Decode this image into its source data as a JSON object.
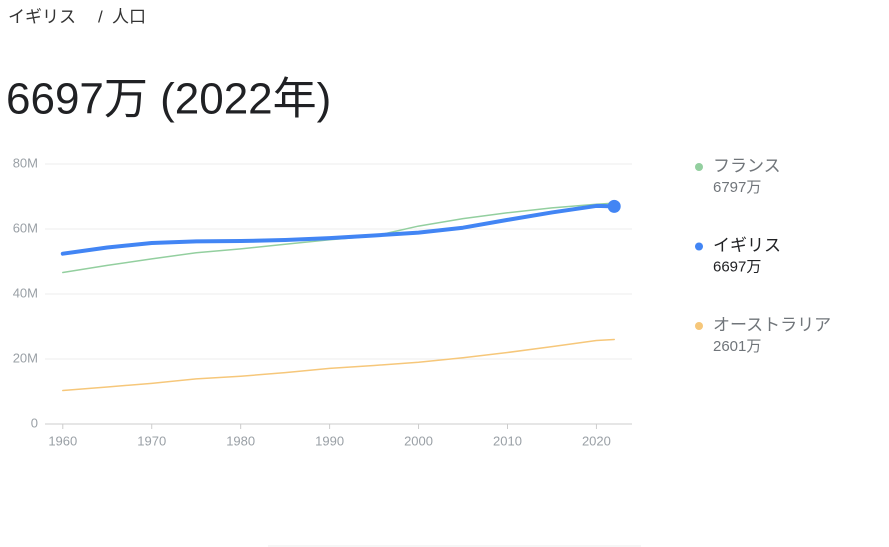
{
  "breadcrumb": [
    "イギリス",
    "/",
    "人口"
  ],
  "headline": "6697万 (2022年)",
  "chart_data": {
    "type": "line",
    "x": [
      1960,
      1965,
      1970,
      1975,
      1980,
      1985,
      1990,
      1995,
      2000,
      2005,
      2010,
      2015,
      2020,
      2022
    ],
    "xlim": [
      1958,
      2024
    ],
    "xticks": [
      1960,
      1970,
      1980,
      1990,
      2000,
      2010,
      2020
    ],
    "ylim": [
      0,
      80000000
    ],
    "yticks": [
      0,
      {
        "value": 20000000,
        "label": "20M"
      },
      {
        "value": 40000000,
        "label": "40M"
      },
      {
        "value": 60000000,
        "label": "60M"
      },
      {
        "value": 80000000,
        "label": "80M"
      }
    ],
    "grid": true,
    "series": [
      {
        "name": "フランス",
        "color": "#93cf9f",
        "latest_label": "6797万",
        "highlighted": false,
        "values": [
          46600000,
          48800000,
          50800000,
          52700000,
          53900000,
          55300000,
          56700000,
          57800000,
          60900000,
          63200000,
          65000000,
          66500000,
          67600000,
          67970000
        ]
      },
      {
        "name": "イギリス",
        "color": "#4285f4",
        "latest_label": "6697万",
        "highlighted": true,
        "values": [
          52400000,
          54300000,
          55700000,
          56200000,
          56300000,
          56600000,
          57200000,
          58000000,
          58900000,
          60400000,
          62800000,
          65100000,
          67100000,
          66970000
        ]
      },
      {
        "name": "オーストラリア",
        "color": "#f6c77a",
        "latest_label": "2601万",
        "highlighted": false,
        "values": [
          10300000,
          11400000,
          12500000,
          13900000,
          14700000,
          15800000,
          17100000,
          18000000,
          19000000,
          20400000,
          22000000,
          23800000,
          25700000,
          26010000
        ]
      }
    ]
  }
}
